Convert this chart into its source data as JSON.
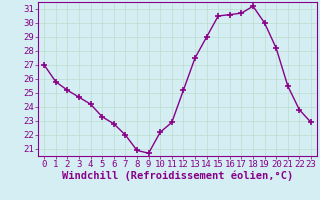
{
  "x": [
    0,
    1,
    2,
    3,
    4,
    5,
    6,
    7,
    8,
    9,
    10,
    11,
    12,
    13,
    14,
    15,
    16,
    17,
    18,
    19,
    20,
    21,
    22,
    23
  ],
  "y": [
    27,
    25.8,
    25.2,
    24.7,
    24.2,
    23.3,
    22.8,
    22.0,
    20.9,
    20.7,
    22.2,
    22.9,
    25.2,
    27.5,
    29.0,
    30.5,
    30.6,
    30.7,
    31.2,
    30.0,
    28.2,
    25.5,
    23.8,
    22.9
  ],
  "xlim": [
    -0.5,
    23.5
  ],
  "ylim": [
    20.5,
    31.5
  ],
  "yticks": [
    21,
    22,
    23,
    24,
    25,
    26,
    27,
    28,
    29,
    30,
    31
  ],
  "xticks": [
    0,
    1,
    2,
    3,
    4,
    5,
    6,
    7,
    8,
    9,
    10,
    11,
    12,
    13,
    14,
    15,
    16,
    17,
    18,
    19,
    20,
    21,
    22,
    23
  ],
  "xlabel": "Windchill (Refroidissement éolien,°C)",
  "line_color": "#880088",
  "marker": "+",
  "marker_size": 4,
  "bg_color": "#d4eef4",
  "grid_color": "#bbddcc",
  "tick_label_color": "#880088",
  "axis_label_color": "#880088",
  "tick_fontsize": 6.5,
  "xlabel_fontsize": 7.5
}
